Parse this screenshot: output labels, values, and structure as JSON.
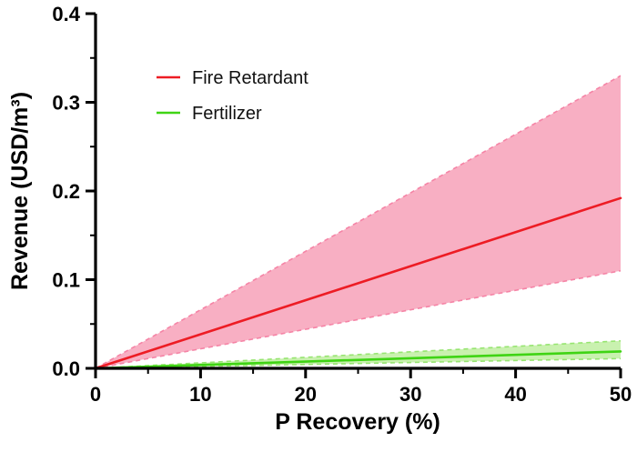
{
  "chart_data": {
    "type": "line",
    "title": "",
    "xlabel": "P Recovery (%)",
    "ylabel": "Revenue (USD/m³)",
    "xlim": [
      0,
      50
    ],
    "ylim": [
      0,
      0.4
    ],
    "x_major_ticks": [
      0,
      10,
      20,
      30,
      40,
      50
    ],
    "x_minor_step": 5,
    "y_major_ticks": [
      0.0,
      0.1,
      0.2,
      0.3,
      0.4
    ],
    "y_minor_step": 0.05,
    "y_tick_decimals": 1,
    "grid": false,
    "axis_color": "#000000",
    "legend_position": "top-left-inside",
    "series": [
      {
        "name": "Fire Retardant",
        "color": "#ED1C24",
        "band_fill": "#F7A6BC",
        "band_edge": "#F584A6",
        "x": [
          0,
          50
        ],
        "mean": [
          0,
          0.192
        ],
        "upper": [
          0,
          0.33
        ],
        "lower": [
          0,
          0.11
        ]
      },
      {
        "name": "Fertilizer",
        "color": "#3FD414",
        "band_fill": "#C3F0A6",
        "band_edge": "#97E571",
        "x": [
          0,
          50
        ],
        "mean": [
          0,
          0.019
        ],
        "upper": [
          0,
          0.031
        ],
        "lower": [
          0,
          0.011
        ]
      }
    ]
  }
}
